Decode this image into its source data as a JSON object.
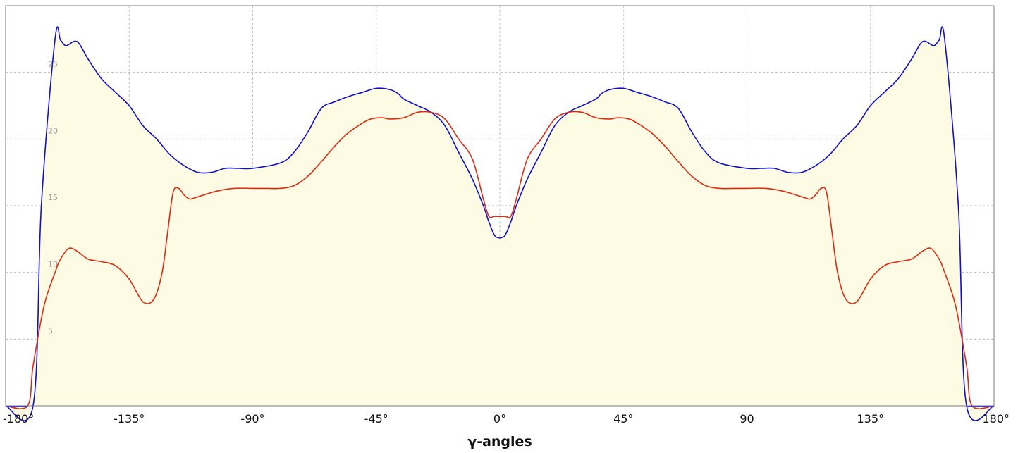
{
  "chart_data": {
    "type": "area",
    "title": "",
    "xlabel": "γ-angles",
    "ylabel": "",
    "xlim": [
      -180,
      180
    ],
    "ylim": [
      0,
      30
    ],
    "grid": true,
    "legend": "none",
    "x_tick_labels": [
      "-180°",
      "-135°",
      "-90°",
      "-45°",
      "0°",
      "45°",
      "90",
      "135°",
      "180°"
    ],
    "x_tick_values": [
      -180,
      -135,
      -90,
      -45,
      0,
      45,
      90,
      135,
      180
    ],
    "y_tick_labels": [
      "5",
      "10",
      "15",
      "20",
      "25"
    ],
    "y_tick_values": [
      5,
      10,
      15,
      20,
      25
    ],
    "colors": {
      "fill": "#fdfbe4",
      "series_upper": "#1010c8",
      "series_lower": "#dd2a10",
      "grid": "#bbbbbb",
      "frame": "#7a7a7a"
    },
    "series": [
      {
        "color": "#1010c8",
        "x": [
          -180,
          -170,
          -167,
          -162,
          -160,
          -158,
          -154,
          -150,
          -145,
          -140,
          -135,
          -130,
          -125,
          -120,
          -115,
          -110,
          -105,
          -100,
          -95,
          -90,
          -80,
          -75,
          -70,
          -65,
          -60,
          -55,
          -50,
          -45,
          -40,
          -37,
          -35,
          -30,
          -25,
          -20,
          -15,
          -10,
          -6,
          -4,
          -2,
          -0.5,
          0.5,
          2,
          4,
          6,
          10,
          15,
          20,
          25,
          30,
          35,
          37,
          40,
          45,
          50,
          55,
          60,
          65,
          70,
          75,
          80,
          90,
          95,
          100,
          105,
          110,
          115,
          120,
          125,
          130,
          135,
          140,
          145,
          150,
          154,
          158,
          160,
          162,
          167,
          170,
          180
        ],
        "y": [
          0,
          0,
          15,
          27.5,
          27.4,
          27,
          27.3,
          26,
          24.5,
          23.5,
          22.5,
          21,
          20,
          18.8,
          18,
          17.5,
          17.5,
          17.8,
          17.8,
          17.8,
          18.2,
          19,
          20.5,
          22.3,
          22.8,
          23.2,
          23.5,
          23.8,
          23.7,
          23.4,
          23,
          22.5,
          22,
          21,
          19,
          17,
          15,
          13.8,
          12.8,
          12.6,
          12.6,
          12.8,
          13.8,
          15,
          17,
          19,
          21,
          22,
          22.5,
          23,
          23.4,
          23.7,
          23.8,
          23.5,
          23.2,
          22.8,
          22.3,
          20.5,
          19,
          18.2,
          17.8,
          17.8,
          17.8,
          17.5,
          17.5,
          18,
          18.8,
          20,
          21,
          22.5,
          23.5,
          24.5,
          26,
          27.3,
          27,
          27.4,
          27.5,
          15,
          0,
          0
        ]
      },
      {
        "color": "#dd2a10",
        "x": [
          -180,
          -172,
          -170,
          -166,
          -162,
          -160,
          -157,
          -154,
          -150,
          -145,
          -140,
          -135,
          -130,
          -126,
          -123,
          -121,
          -119,
          -117,
          -115,
          -113,
          -111,
          -108,
          -103,
          -97,
          -90,
          -85,
          -80,
          -75,
          -70,
          -65,
          -60,
          -55,
          -50,
          -47,
          -43,
          -40,
          -35,
          -30,
          -25,
          -20,
          -15,
          -10,
          -6,
          -4,
          -2,
          0,
          2,
          4,
          6,
          10,
          15,
          20,
          25,
          30,
          35,
          40,
          43,
          47,
          50,
          55,
          60,
          65,
          70,
          75,
          80,
          85,
          90,
          97,
          103,
          108,
          111,
          113,
          115,
          117,
          119,
          121,
          123,
          126,
          130,
          135,
          140,
          145,
          150,
          154,
          157,
          160,
          162,
          166,
          170,
          172,
          180
        ],
        "y": [
          0,
          0,
          3,
          7.5,
          10,
          11,
          11.8,
          11.6,
          11,
          10.8,
          10.5,
          9.5,
          7.8,
          8,
          10,
          13,
          16,
          16.3,
          15.8,
          15.5,
          15.6,
          15.8,
          16.1,
          16.3,
          16.3,
          16.3,
          16.3,
          16.5,
          17.2,
          18.3,
          19.5,
          20.5,
          21.2,
          21.5,
          21.6,
          21.5,
          21.6,
          22,
          22,
          21.5,
          20,
          18.5,
          15.5,
          14.2,
          14.2,
          14.2,
          14.2,
          14.2,
          15.5,
          18.5,
          20,
          21.5,
          22,
          22,
          21.6,
          21.5,
          21.6,
          21.5,
          21.2,
          20.5,
          19.5,
          18.3,
          17.2,
          16.5,
          16.3,
          16.3,
          16.3,
          16.3,
          16.1,
          15.8,
          15.6,
          15.5,
          15.8,
          16.3,
          16,
          13,
          10,
          8,
          7.8,
          9.5,
          10.5,
          10.8,
          11,
          11.6,
          11.8,
          11,
          10,
          7.5,
          3,
          0,
          0
        ]
      }
    ]
  }
}
